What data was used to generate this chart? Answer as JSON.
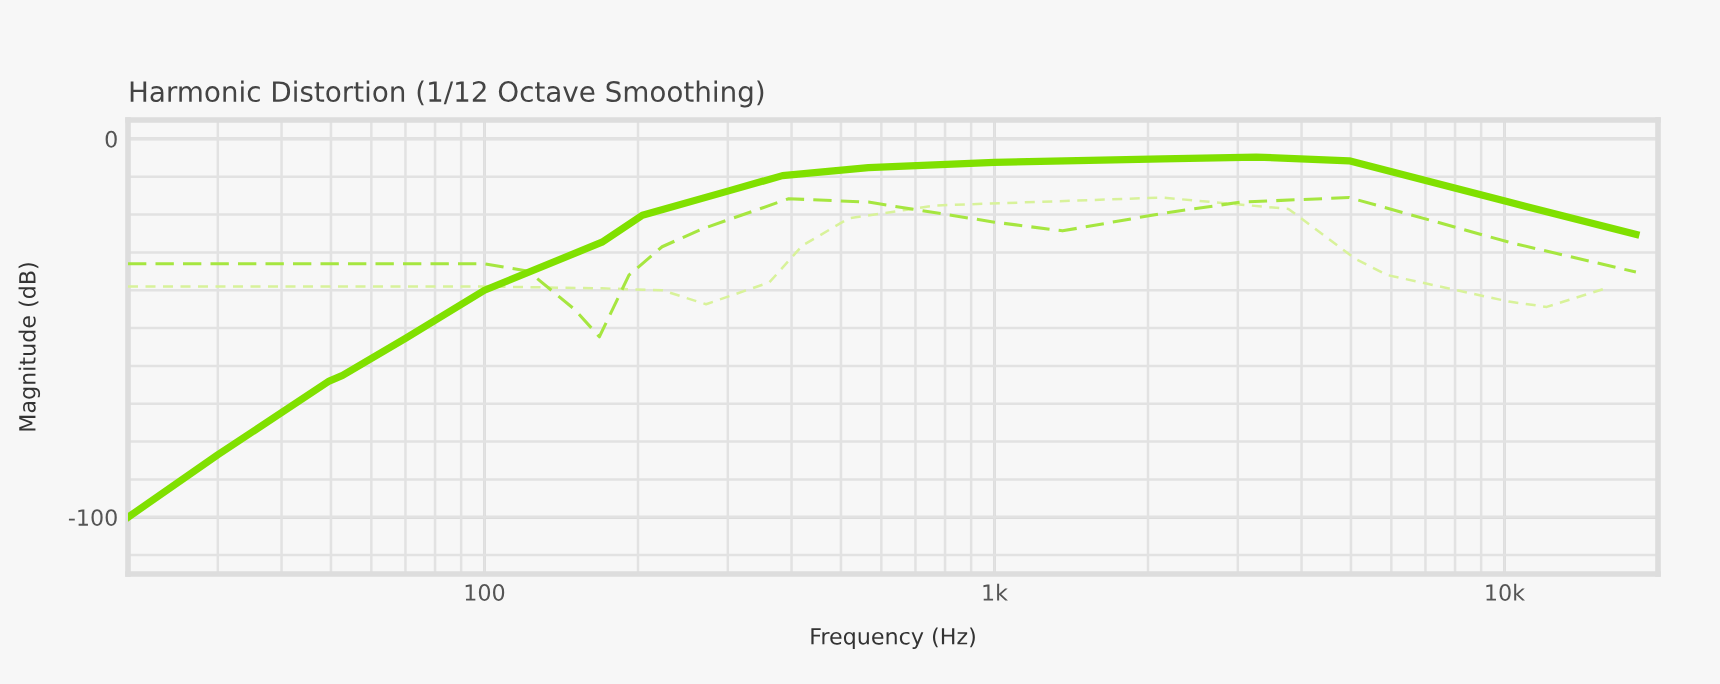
{
  "chart_data": {
    "type": "line",
    "title": "Harmonic Distortion (1/12 Octave Smoothing)",
    "xlabel": "Frequency (Hz)",
    "ylabel": "Magnitude (dB)",
    "log": "x",
    "xlim": [
      20,
      20000
    ],
    "ylim": [
      -115,
      5
    ],
    "xticks": [
      {
        "value": 20,
        "label": null
      },
      {
        "value": 30,
        "label": null
      },
      {
        "value": 40,
        "label": null
      },
      {
        "value": 50,
        "label": null
      },
      {
        "value": 60,
        "label": null
      },
      {
        "value": 70,
        "label": null
      },
      {
        "value": 80,
        "label": null
      },
      {
        "value": 90,
        "label": null
      },
      100,
      {
        "value": 200,
        "label": null
      },
      {
        "value": 300,
        "label": null
      },
      {
        "value": 400,
        "label": null
      },
      {
        "value": 500,
        "label": null
      },
      {
        "value": 600,
        "label": null
      },
      {
        "value": 700,
        "label": null
      },
      {
        "value": 800,
        "label": null
      },
      {
        "value": 900,
        "label": null
      },
      {
        "value": 1000,
        "label": "1k"
      },
      {
        "value": 2000,
        "label": null
      },
      {
        "value": 3000,
        "label": null
      },
      {
        "value": 4000,
        "label": null
      },
      {
        "value": 5000,
        "label": null
      },
      {
        "value": 6000,
        "label": null
      },
      {
        "value": 7000,
        "label": null
      },
      {
        "value": 8000,
        "label": null
      },
      {
        "value": 9000,
        "label": null
      },
      {
        "value": 10000,
        "label": "10k"
      }
    ],
    "yticks": [
      0,
      {
        "value": -10,
        "label": null
      },
      {
        "value": -20,
        "label": null
      },
      {
        "value": -30,
        "label": null
      },
      {
        "value": -40,
        "label": null
      },
      {
        "value": -50,
        "label": null
      },
      {
        "value": -60,
        "label": null
      },
      {
        "value": -70,
        "label": null
      },
      {
        "value": -80,
        "label": null
      },
      {
        "value": -90,
        "label": null
      },
      -100,
      {
        "value": -110,
        "label": null
      }
    ],
    "grid": true,
    "legend": false,
    "series": [
      {
        "color": "#80e000",
        "line_style": "solid",
        "x": [
          20,
          30,
          49.6,
          52.7,
          70,
          100,
          170,
          204,
          300,
          384,
          566,
          1000,
          2135,
          3260,
          4960,
          10200,
          18100
        ],
        "values": [
          -100,
          -83.5,
          -64,
          -62.5,
          -52.7,
          -40,
          -27.3,
          -20.2,
          -13.8,
          -9.7,
          -7.6,
          -6.2,
          -5.3,
          -4.8,
          -5.8,
          -16.7,
          -25.2
        ]
      },
      {
        "color": "#a6e640",
        "line_style": "dashed",
        "x": [
          20,
          100,
          122,
          150,
          168,
          192,
          223,
          267,
          395,
          566,
          1000,
          1360,
          2130,
          3040,
          4960,
          10200,
          18100
        ],
        "values": [
          -33,
          -33,
          -35,
          -45,
          -52.3,
          -36,
          -28.5,
          -23.8,
          -15.8,
          -16.7,
          -22,
          -24.3,
          -19.7,
          -16.7,
          -15.5,
          -27.3,
          -35.2
        ]
      },
      {
        "color": "#d8f29a",
        "line_style": "dashed",
        "x": [
          20,
          100,
          170,
          223,
          272,
          362,
          420,
          518,
          766,
          2130,
          3770,
          5100,
          5900,
          10200,
          12100,
          15700
        ],
        "values": [
          -39,
          -39,
          -39.5,
          -40,
          -43.7,
          -37.9,
          -28.2,
          -21,
          -17.6,
          -15.5,
          -18.5,
          -31.7,
          -36,
          -43,
          -44.4,
          -39.6
        ]
      }
    ]
  }
}
